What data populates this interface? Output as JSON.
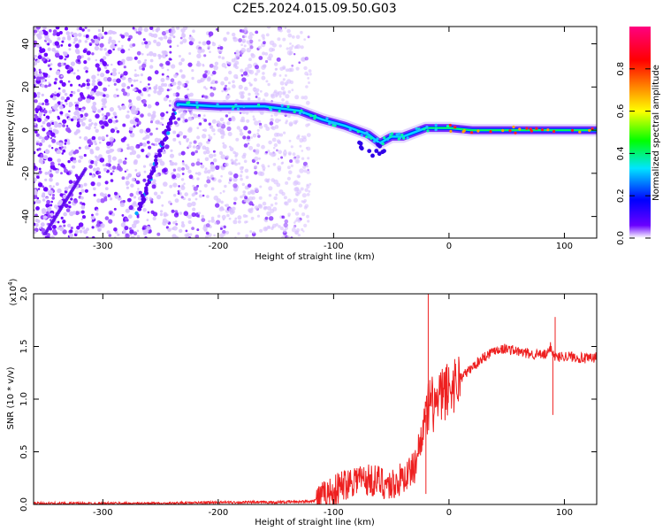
{
  "title": "C2E5.2024.015.09.50.G03",
  "chart_data": [
    {
      "type": "heatmap",
      "xlabel": "Height of straight line (km)",
      "ylabel": "Frequency (Hz)",
      "xlim": [
        -360,
        128
      ],
      "ylim": [
        -50,
        48
      ],
      "xticks": [
        -300,
        -200,
        -100,
        0,
        100
      ],
      "yticks": [
        -40,
        -20,
        0,
        20,
        40
      ],
      "colorbar": {
        "label": "Normalized spectral amplitude",
        "range": [
          0,
          1
        ],
        "ticks": [
          0.0,
          0.2,
          0.4,
          0.6,
          0.8
        ],
        "colors": [
          "#ffffff",
          "#6a00ff",
          "#0000ff",
          "#00e5ff",
          "#00ff00",
          "#ffff00",
          "#ff8000",
          "#ff0000",
          "#ff0080"
        ]
      },
      "features": {
        "main_trace": [
          [
            -235,
            12
          ],
          [
            -200,
            11
          ],
          [
            -160,
            11
          ],
          [
            -130,
            9
          ],
          [
            -110,
            5
          ],
          [
            -90,
            2
          ],
          [
            -70,
            -2
          ],
          [
            -60,
            -6
          ],
          [
            -50,
            -3
          ],
          [
            -40,
            -3
          ],
          [
            -20,
            1
          ],
          [
            0,
            1
          ],
          [
            20,
            0
          ],
          [
            60,
            0
          ],
          [
            85,
            0
          ],
          [
            128,
            0
          ]
        ],
        "diagonal_streak": [
          [
            -270,
            -38
          ],
          [
            -235,
            12
          ]
        ],
        "noise_region_xlim": [
          -360,
          -130
        ]
      }
    },
    {
      "type": "line",
      "xlabel": "Height of straight line (km)",
      "ylabel": "SNR (10 * v/v)",
      "yscale_label": "(x10",
      "yscale_exp": "4",
      "xlim": [
        -360,
        128
      ],
      "ylim": [
        0,
        2.0
      ],
      "xticks": [
        -300,
        -200,
        -100,
        0,
        100
      ],
      "yticks": [
        0.0,
        0.5,
        1.0,
        1.5,
        2.0
      ],
      "series": [
        {
          "color": "#ee2020",
          "x": [
            -360,
            -300,
            -250,
            -200,
            -150,
            -120,
            -110,
            -100,
            -90,
            -80,
            -70,
            -60,
            -50,
            -40,
            -30,
            -25,
            -20,
            -15,
            -10,
            -5,
            0,
            5,
            10,
            20,
            30,
            40,
            50,
            60,
            70,
            80,
            85,
            88,
            90,
            92,
            95,
            100,
            110,
            120,
            128
          ],
          "y": [
            0.01,
            0.01,
            0.01,
            0.02,
            0.02,
            0.03,
            0.06,
            0.12,
            0.2,
            0.25,
            0.23,
            0.22,
            0.18,
            0.25,
            0.35,
            0.6,
            0.85,
            0.95,
            0.95,
            1.05,
            1.1,
            1.15,
            1.2,
            1.3,
            1.4,
            1.47,
            1.48,
            1.45,
            1.43,
            1.42,
            1.42,
            1.5,
            1.45,
            1.4,
            1.4,
            1.41,
            1.4,
            1.38,
            1.4
          ]
        }
      ],
      "spikes": [
        [
          -18,
          2.0
        ],
        [
          -20,
          0.1
        ],
        [
          92,
          1.78
        ],
        [
          90,
          0.85
        ]
      ]
    }
  ]
}
